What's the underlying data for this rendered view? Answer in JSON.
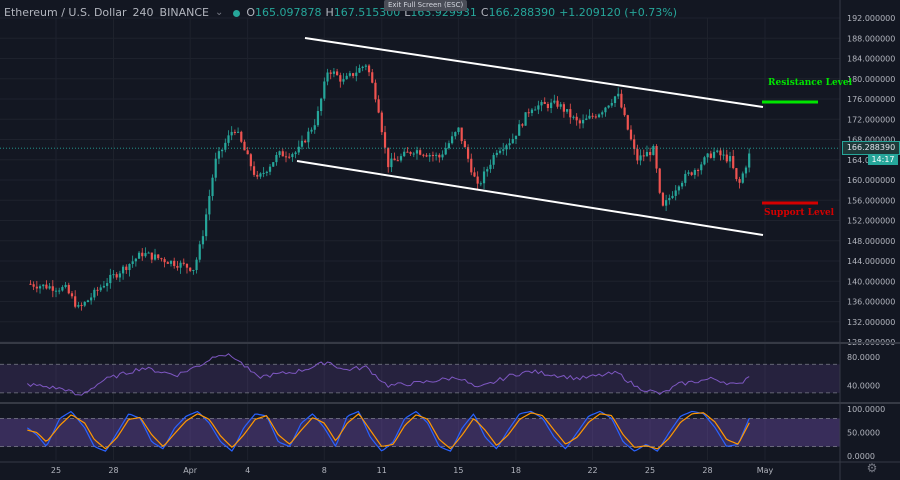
{
  "header": {
    "symbol": "Ethereum / U.S. Dollar",
    "interval": "240",
    "exchange": "BINANCE",
    "open_label": "O",
    "open_value": "165.097878",
    "high_label": "H",
    "high_value": "167.515300",
    "low_label": "L",
    "low_value": "163.929931",
    "close_label": "C",
    "close_value": "166.288390",
    "change_value": "+1.209120 (+0.73%)",
    "exit_fullscreen": "Exit Full Screen (ESC)"
  },
  "price_tag": {
    "value": "166.288390",
    "timer": "14:17"
  },
  "annotations": {
    "resistance": "Resistance Level",
    "support": "Support Level"
  },
  "colors": {
    "background": "#131722",
    "bull": "#26a69a",
    "bear": "#ef5350",
    "resistance": "#00e600",
    "support": "#d50000",
    "rsi_line": "#7e57c2",
    "stoch_k": "#2962ff",
    "stoch_d": "#ff9800"
  },
  "icons": {
    "settings": "gear-icon"
  },
  "chart_data": [
    {
      "type": "candlestick",
      "panel": "price",
      "ylim": [
        128,
        192
      ],
      "y_ticks": [
        "192.000000",
        "188.000000",
        "184.000000",
        "180.000000",
        "176.000000",
        "172.000000",
        "168.000000",
        "164.000000",
        "160.000000",
        "156.000000",
        "152.000000",
        "148.000000",
        "144.000000",
        "140.000000",
        "136.000000",
        "132.000000",
        "128.000000"
      ],
      "x_ticks": [
        "25",
        "28",
        "Apr",
        "4",
        "8",
        "11",
        "15",
        "18",
        "22",
        "25",
        "28",
        "May"
      ],
      "x_tick_days": [
        -6,
        -3,
        1,
        4,
        8,
        11,
        15,
        18,
        22,
        25,
        28,
        31
      ],
      "anchors": [
        [
          -7.5,
          139.5
        ],
        [
          -5.5,
          138.5
        ],
        [
          -4.8,
          134.5
        ],
        [
          -3.5,
          139.5
        ],
        [
          -1.5,
          145.5
        ],
        [
          0.3,
          143.5
        ],
        [
          1.2,
          142.5
        ],
        [
          1.6,
          148.0
        ],
        [
          2.3,
          163.5
        ],
        [
          3.3,
          170.5
        ],
        [
          4.5,
          160.0
        ],
        [
          5.6,
          165.0
        ],
        [
          6.6,
          165.5
        ],
        [
          7.6,
          172.0
        ],
        [
          8.2,
          182.0
        ],
        [
          9.0,
          179.5
        ],
        [
          10.2,
          183.0
        ],
        [
          10.8,
          175.0
        ],
        [
          11.3,
          163.0
        ],
        [
          12.7,
          166.0
        ],
        [
          14.0,
          164.5
        ],
        [
          15.0,
          170.0
        ],
        [
          16.0,
          158.5
        ],
        [
          17.0,
          166.0
        ],
        [
          17.8,
          168.0
        ],
        [
          18.8,
          174.5
        ],
        [
          20.2,
          175.0
        ],
        [
          21.3,
          171.0
        ],
        [
          22.4,
          173.5
        ],
        [
          23.3,
          177.0
        ],
        [
          24.3,
          164.0
        ],
        [
          25.2,
          166.0
        ],
        [
          25.6,
          154.0
        ],
        [
          26.5,
          159.5
        ],
        [
          27.3,
          162.0
        ],
        [
          28.3,
          165.5
        ],
        [
          29.2,
          164.0
        ],
        [
          29.6,
          158.5
        ],
        [
          30.3,
          166.3
        ]
      ],
      "last_close": 166.28839
    },
    {
      "type": "line",
      "name": "",
      "panel": "rsi",
      "ylim": [
        20,
        90
      ],
      "y_ticks": [
        "80.0000",
        "40.0000"
      ],
      "bands": [
        70,
        30
      ],
      "anchors": [
        [
          -7.5,
          42
        ],
        [
          -5.5,
          35
        ],
        [
          -4.8,
          25
        ],
        [
          -3.5,
          48
        ],
        [
          -1.5,
          65
        ],
        [
          0.3,
          55
        ],
        [
          1.6,
          70
        ],
        [
          2.5,
          85
        ],
        [
          3.3,
          80
        ],
        [
          4.5,
          52
        ],
        [
          6.6,
          60
        ],
        [
          7.6,
          68
        ],
        [
          8.2,
          74
        ],
        [
          9.0,
          62
        ],
        [
          10.2,
          66
        ],
        [
          11.3,
          40
        ],
        [
          13,
          44
        ],
        [
          15,
          52
        ],
        [
          16,
          36
        ],
        [
          17.8,
          55
        ],
        [
          18.8,
          60
        ],
        [
          21.3,
          50
        ],
        [
          23.3,
          58
        ],
        [
          24.3,
          38
        ],
        [
          25.6,
          28
        ],
        [
          26.5,
          42
        ],
        [
          28.3,
          50
        ],
        [
          29.6,
          40
        ],
        [
          30.3,
          58
        ]
      ]
    },
    {
      "type": "line",
      "panel": "stoch",
      "ylim": [
        0,
        100
      ],
      "y_ticks": [
        "100.0000",
        "50.0000",
        "0.0000"
      ],
      "bands": [
        80,
        20
      ],
      "series": [
        {
          "name": "",
          "anchors": [
            [
              -7.5,
              60
            ],
            [
              -7,
              45
            ],
            [
              -6.5,
              20
            ],
            [
              -5.8,
              80
            ],
            [
              -5.2,
              95
            ],
            [
              -4.5,
              60
            ],
            [
              -4,
              20
            ],
            [
              -3.4,
              10
            ],
            [
              -2.8,
              50
            ],
            [
              -2.2,
              90
            ],
            [
              -1.6,
              80
            ],
            [
              -1,
              30
            ],
            [
              -0.4,
              15
            ],
            [
              0.2,
              60
            ],
            [
              0.8,
              85
            ],
            [
              1.4,
              95
            ],
            [
              2,
              70
            ],
            [
              2.6,
              30
            ],
            [
              3.2,
              10
            ],
            [
              3.8,
              60
            ],
            [
              4.4,
              90
            ],
            [
              5,
              85
            ],
            [
              5.6,
              30
            ],
            [
              6.2,
              20
            ],
            [
              6.8,
              70
            ],
            [
              7.4,
              90
            ],
            [
              8,
              60
            ],
            [
              8.6,
              20
            ],
            [
              9.2,
              85
            ],
            [
              9.8,
              95
            ],
            [
              10.4,
              40
            ],
            [
              11,
              10
            ],
            [
              11.6,
              30
            ],
            [
              12.2,
              80
            ],
            [
              12.8,
              95
            ],
            [
              13.4,
              70
            ],
            [
              14,
              20
            ],
            [
              14.6,
              10
            ],
            [
              15.2,
              60
            ],
            [
              15.8,
              90
            ],
            [
              16.4,
              40
            ],
            [
              17,
              15
            ],
            [
              17.6,
              55
            ],
            [
              18.2,
              90
            ],
            [
              18.8,
              95
            ],
            [
              19.4,
              80
            ],
            [
              20,
              40
            ],
            [
              20.6,
              15
            ],
            [
              21.2,
              50
            ],
            [
              21.8,
              85
            ],
            [
              22.4,
              95
            ],
            [
              23,
              80
            ],
            [
              23.6,
              30
            ],
            [
              24.2,
              10
            ],
            [
              24.8,
              25
            ],
            [
              25.4,
              10
            ],
            [
              26,
              50
            ],
            [
              26.6,
              85
            ],
            [
              27.2,
              95
            ],
            [
              27.8,
              90
            ],
            [
              28.4,
              60
            ],
            [
              29,
              20
            ],
            [
              29.6,
              25
            ],
            [
              30.3,
              92
            ]
          ]
        },
        {
          "name": "",
          "anchors": [
            [
              -7.5,
              55
            ],
            [
              -7,
              50
            ],
            [
              -6.5,
              30
            ],
            [
              -5.8,
              65
            ],
            [
              -5.2,
              88
            ],
            [
              -4.5,
              70
            ],
            [
              -4,
              35
            ],
            [
              -3.4,
              15
            ],
            [
              -2.8,
              40
            ],
            [
              -2.2,
              78
            ],
            [
              -1.6,
              82
            ],
            [
              -1,
              45
            ],
            [
              -0.4,
              20
            ],
            [
              0.2,
              48
            ],
            [
              0.8,
              75
            ],
            [
              1.4,
              90
            ],
            [
              2,
              78
            ],
            [
              2.6,
              42
            ],
            [
              3.2,
              18
            ],
            [
              3.8,
              45
            ],
            [
              4.4,
              78
            ],
            [
              5,
              86
            ],
            [
              5.6,
              45
            ],
            [
              6.2,
              25
            ],
            [
              6.8,
              55
            ],
            [
              7.4,
              82
            ],
            [
              8,
              70
            ],
            [
              8.6,
              32
            ],
            [
              9.2,
              70
            ],
            [
              9.8,
              90
            ],
            [
              10.4,
              55
            ],
            [
              11,
              20
            ],
            [
              11.6,
              25
            ],
            [
              12.2,
              65
            ],
            [
              12.8,
              88
            ],
            [
              13.4,
              78
            ],
            [
              14,
              35
            ],
            [
              14.6,
              15
            ],
            [
              15.2,
              45
            ],
            [
              15.8,
              80
            ],
            [
              16.4,
              55
            ],
            [
              17,
              22
            ],
            [
              17.6,
              45
            ],
            [
              18.2,
              78
            ],
            [
              18.8,
              92
            ],
            [
              19.4,
              86
            ],
            [
              20,
              55
            ],
            [
              20.6,
              25
            ],
            [
              21.2,
              40
            ],
            [
              21.8,
              72
            ],
            [
              22.4,
              90
            ],
            [
              23,
              86
            ],
            [
              23.6,
              45
            ],
            [
              24.2,
              18
            ],
            [
              24.8,
              22
            ],
            [
              25.4,
              15
            ],
            [
              26,
              38
            ],
            [
              26.6,
              72
            ],
            [
              27.2,
              90
            ],
            [
              27.8,
              92
            ],
            [
              28.4,
              72
            ],
            [
              29,
              35
            ],
            [
              29.6,
              25
            ],
            [
              30.3,
              80
            ]
          ]
        }
      ]
    }
  ]
}
